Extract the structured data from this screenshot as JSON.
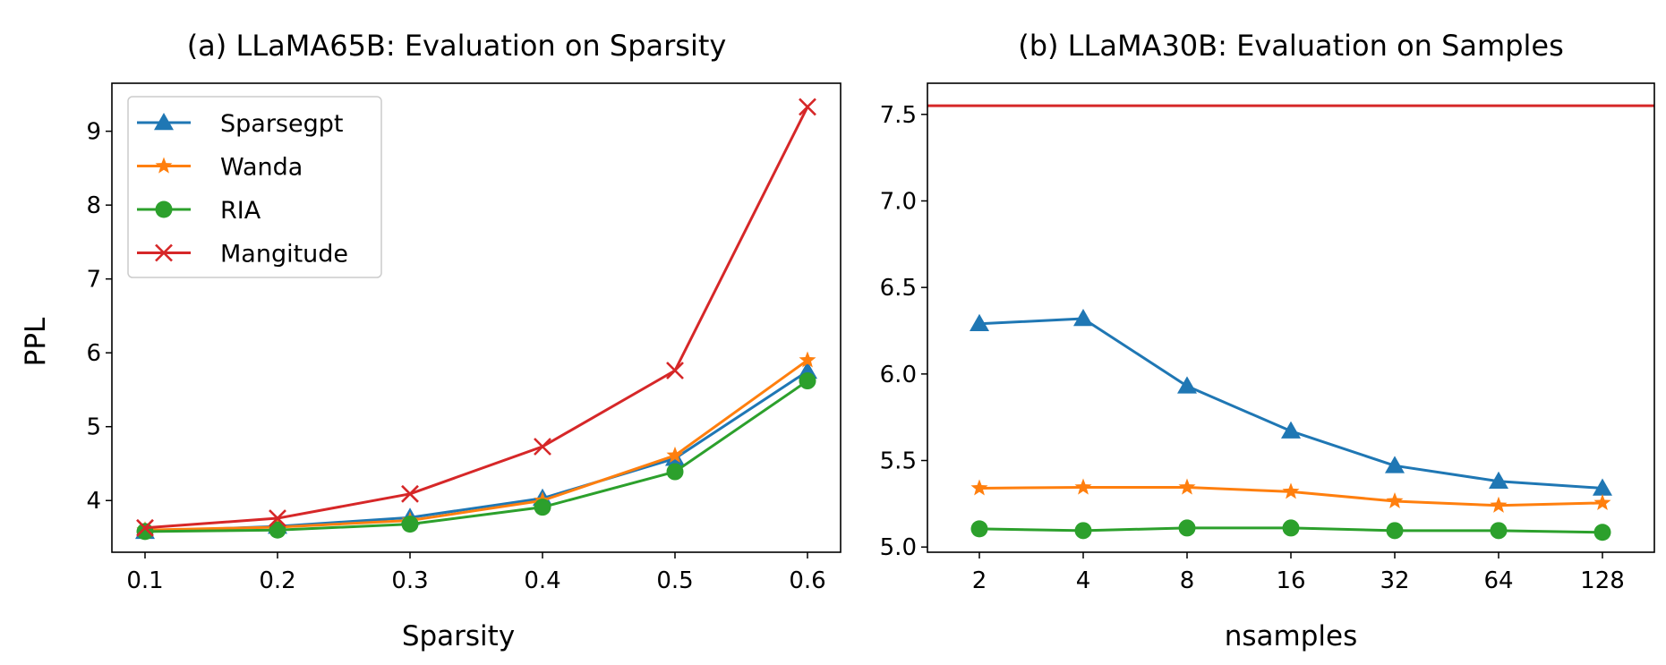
{
  "chart_data": [
    {
      "type": "line",
      "title": "(a) LLaMA65B: Evaluation on Sparsity",
      "xlabel": "Sparsity",
      "ylabel": "PPL",
      "x": [
        0.1,
        0.2,
        0.3,
        0.4,
        0.5,
        0.6
      ],
      "x_tick_labels": [
        "0.1",
        "0.2",
        "0.3",
        "0.4",
        "0.5",
        "0.6"
      ],
      "y_ticks": [
        4,
        5,
        6,
        7,
        8,
        9
      ],
      "y_tick_labels": [
        "4",
        "5",
        "6",
        "7",
        "8",
        "9"
      ],
      "xlim": [
        0.075,
        0.625
      ],
      "ylim": [
        3.3,
        9.65
      ],
      "grid": false,
      "legend": "upper left",
      "series": [
        {
          "name": "Sparsegpt",
          "color": "#1f77b4",
          "marker": "triangle",
          "values": [
            3.58,
            3.65,
            3.77,
            4.03,
            4.57,
            5.75
          ]
        },
        {
          "name": "Wanda",
          "color": "#ff7f0e",
          "marker": "star",
          "values": [
            3.6,
            3.64,
            3.73,
            4.0,
            4.61,
            5.9
          ]
        },
        {
          "name": "RIA",
          "color": "#2ca02c",
          "marker": "circle",
          "values": [
            3.58,
            3.6,
            3.68,
            3.91,
            4.39,
            5.62
          ]
        },
        {
          "name": "Mangitude",
          "color": "#d62728",
          "marker": "x",
          "values": [
            3.63,
            3.76,
            4.09,
            4.73,
            5.76,
            9.33
          ]
        }
      ]
    },
    {
      "type": "line",
      "title": "(b) LLaMA30B: Evaluation on Samples",
      "xlabel": "nsamples",
      "ylabel": "",
      "categories": [
        "2",
        "4",
        "8",
        "16",
        "32",
        "64",
        "128"
      ],
      "y_ticks": [
        5.0,
        5.5,
        6.0,
        6.5,
        7.0,
        7.5
      ],
      "y_tick_labels": [
        "5.0",
        "5.5",
        "6.0",
        "6.5",
        "7.0",
        "7.5"
      ],
      "ylim": [
        4.97,
        7.68
      ],
      "grid": false,
      "hline": {
        "value": 7.55,
        "color": "#d62728"
      },
      "series": [
        {
          "color": "#1f77b4",
          "marker": "triangle",
          "values": [
            6.29,
            6.32,
            5.93,
            5.67,
            5.47,
            5.38,
            5.34
          ]
        },
        {
          "color": "#ff7f0e",
          "marker": "star",
          "values": [
            5.34,
            5.345,
            5.345,
            5.32,
            5.265,
            5.24,
            5.255
          ]
        },
        {
          "color": "#2ca02c",
          "marker": "circle",
          "values": [
            5.105,
            5.095,
            5.11,
            5.11,
            5.095,
            5.095,
            5.085
          ]
        }
      ]
    }
  ]
}
